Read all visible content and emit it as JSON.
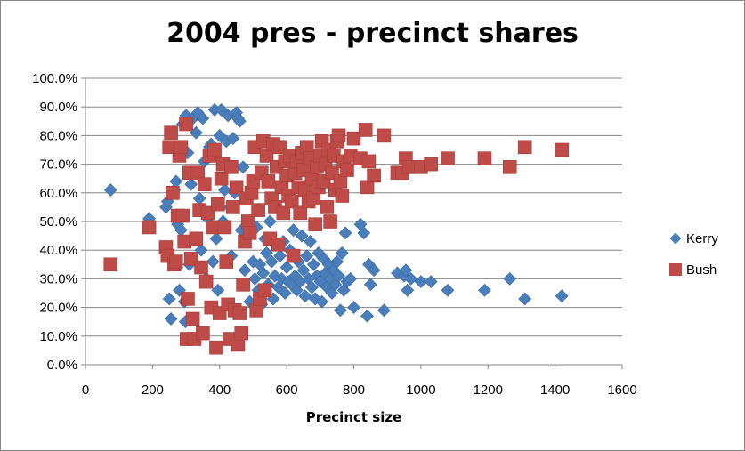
{
  "chart_data": {
    "type": "scatter",
    "title": "2004 pres - precinct shares",
    "xlabel": "Precinct size",
    "ylabel": "",
    "xlim": [
      0,
      1600
    ],
    "ylim": [
      0,
      1
    ],
    "x_ticks": [
      0,
      200,
      400,
      600,
      800,
      1000,
      1200,
      1400,
      1600
    ],
    "x_tick_labels": [
      "0",
      "200",
      "400",
      "600",
      "800",
      "1000",
      "1200",
      "1400",
      "1600"
    ],
    "y_ticks": [
      0,
      0.1,
      0.2,
      0.3,
      0.4,
      0.5,
      0.6,
      0.7,
      0.8,
      0.9,
      1.0
    ],
    "y_tick_labels": [
      "0.0%",
      "10.0%",
      "20.0%",
      "30.0%",
      "40.0%",
      "50.0%",
      "60.0%",
      "70.0%",
      "80.0%",
      "90.0%",
      "100.0%"
    ],
    "grid": "horizontal",
    "legend_position": "right",
    "series": [
      {
        "name": "Kerry",
        "marker": "diamond",
        "color": "#4a7ebb",
        "points": [
          [
            75,
            0.61
          ],
          [
            190,
            0.51
          ],
          [
            240,
            0.55
          ],
          [
            245,
            0.57
          ],
          [
            250,
            0.23
          ],
          [
            255,
            0.16
          ],
          [
            265,
            0.61
          ],
          [
            270,
            0.64
          ],
          [
            275,
            0.49
          ],
          [
            280,
            0.26
          ],
          [
            285,
            0.47
          ],
          [
            290,
            0.84
          ],
          [
            295,
            0.22
          ],
          [
            298,
            0.15
          ],
          [
            300,
            0.87
          ],
          [
            305,
            0.74
          ],
          [
            310,
            0.35
          ],
          [
            315,
            0.63
          ],
          [
            320,
            0.86
          ],
          [
            330,
            0.81
          ],
          [
            335,
            0.88
          ],
          [
            340,
            0.58
          ],
          [
            345,
            0.4
          ],
          [
            350,
            0.86
          ],
          [
            355,
            0.71
          ],
          [
            360,
            0.3
          ],
          [
            365,
            0.51
          ],
          [
            370,
            0.76
          ],
          [
            375,
            0.77
          ],
          [
            380,
            0.36
          ],
          [
            385,
            0.89
          ],
          [
            390,
            0.44
          ],
          [
            395,
            0.26
          ],
          [
            400,
            0.8
          ],
          [
            405,
            0.89
          ],
          [
            410,
            0.5
          ],
          [
            415,
            0.61
          ],
          [
            420,
            0.78
          ],
          [
            425,
            0.87
          ],
          [
            430,
            0.55
          ],
          [
            435,
            0.38
          ],
          [
            440,
            0.79
          ],
          [
            445,
            0.6
          ],
          [
            450,
            0.88
          ],
          [
            455,
            0.86
          ],
          [
            460,
            0.85
          ],
          [
            465,
            0.47
          ],
          [
            470,
            0.69
          ],
          [
            475,
            0.33
          ],
          [
            480,
            0.45
          ],
          [
            490,
            0.22
          ],
          [
            495,
            0.47
          ],
          [
            500,
            0.36
          ],
          [
            505,
            0.3
          ],
          [
            510,
            0.48
          ],
          [
            515,
            0.26
          ],
          [
            520,
            0.35
          ],
          [
            525,
            0.21
          ],
          [
            530,
            0.32
          ],
          [
            535,
            0.44
          ],
          [
            540,
            0.39
          ],
          [
            545,
            0.28
          ],
          [
            550,
            0.5
          ],
          [
            555,
            0.36
          ],
          [
            560,
            0.23
          ],
          [
            565,
            0.31
          ],
          [
            570,
            0.42
          ],
          [
            575,
            0.27
          ],
          [
            580,
            0.38
          ],
          [
            585,
            0.3
          ],
          [
            590,
            0.43
          ],
          [
            595,
            0.25
          ],
          [
            600,
            0.34
          ],
          [
            605,
            0.29
          ],
          [
            610,
            0.4
          ],
          [
            615,
            0.28
          ],
          [
            620,
            0.47
          ],
          [
            625,
            0.31
          ],
          [
            630,
            0.26
          ],
          [
            635,
            0.36
          ],
          [
            640,
            0.29
          ],
          [
            645,
            0.45
          ],
          [
            650,
            0.33
          ],
          [
            655,
            0.24
          ],
          [
            660,
            0.38
          ],
          [
            665,
            0.3
          ],
          [
            670,
            0.43
          ],
          [
            675,
            0.27
          ],
          [
            680,
            0.35
          ],
          [
            685,
            0.23
          ],
          [
            690,
            0.31
          ],
          [
            695,
            0.39
          ],
          [
            700,
            0.29
          ],
          [
            705,
            0.22
          ],
          [
            710,
            0.37
          ],
          [
            715,
            0.32
          ],
          [
            720,
            0.27
          ],
          [
            725,
            0.35
          ],
          [
            730,
            0.3
          ],
          [
            735,
            0.25
          ],
          [
            740,
            0.33
          ],
          [
            745,
            0.28
          ],
          [
            750,
            0.36
          ],
          [
            755,
            0.31
          ],
          [
            760,
            0.19
          ],
          [
            765,
            0.39
          ],
          [
            770,
            0.26
          ],
          [
            775,
            0.46
          ],
          [
            780,
            0.29
          ],
          [
            790,
            0.3
          ],
          [
            800,
            0.2
          ],
          [
            820,
            0.49
          ],
          [
            830,
            0.46
          ],
          [
            840,
            0.17
          ],
          [
            845,
            0.35
          ],
          [
            850,
            0.28
          ],
          [
            860,
            0.33
          ],
          [
            890,
            0.19
          ],
          [
            930,
            0.32
          ],
          [
            950,
            0.31
          ],
          [
            955,
            0.33
          ],
          [
            960,
            0.26
          ],
          [
            970,
            0.3
          ],
          [
            1000,
            0.29
          ],
          [
            1030,
            0.29
          ],
          [
            1080,
            0.26
          ],
          [
            1190,
            0.26
          ],
          [
            1265,
            0.3
          ],
          [
            1310,
            0.23
          ],
          [
            1420,
            0.24
          ]
        ]
      },
      {
        "name": "Bush",
        "marker": "square",
        "color": "#be4b48",
        "points": [
          [
            75,
            0.35
          ],
          [
            190,
            0.48
          ],
          [
            240,
            0.41
          ],
          [
            245,
            0.38
          ],
          [
            250,
            0.76
          ],
          [
            255,
            0.81
          ],
          [
            260,
            0.6
          ],
          [
            265,
            0.35
          ],
          [
            270,
            0.36
          ],
          [
            275,
            0.52
          ],
          [
            280,
            0.73
          ],
          [
            285,
            0.76
          ],
          [
            290,
            0.52
          ],
          [
            295,
            0.43
          ],
          [
            300,
            0.84
          ],
          [
            302,
            0.09
          ],
          [
            305,
            0.23
          ],
          [
            310,
            0.67
          ],
          [
            315,
            0.37
          ],
          [
            320,
            0.16
          ],
          [
            325,
            0.09
          ],
          [
            330,
            0.44
          ],
          [
            335,
            0.67
          ],
          [
            340,
            0.54
          ],
          [
            345,
            0.34
          ],
          [
            350,
            0.11
          ],
          [
            355,
            0.63
          ],
          [
            360,
            0.29
          ],
          [
            365,
            0.53
          ],
          [
            370,
            0.73
          ],
          [
            375,
            0.2
          ],
          [
            380,
            0.48
          ],
          [
            385,
            0.75
          ],
          [
            390,
            0.06
          ],
          [
            395,
            0.56
          ],
          [
            400,
            0.18
          ],
          [
            405,
            0.65
          ],
          [
            410,
            0.7
          ],
          [
            415,
            0.48
          ],
          [
            420,
            0.36
          ],
          [
            425,
            0.21
          ],
          [
            430,
            0.09
          ],
          [
            435,
            0.69
          ],
          [
            440,
            0.55
          ],
          [
            445,
            0.19
          ],
          [
            450,
            0.62
          ],
          [
            455,
            0.07
          ],
          [
            460,
            0.18
          ],
          [
            465,
            0.11
          ],
          [
            470,
            0.28
          ],
          [
            475,
            0.43
          ],
          [
            480,
            0.58
          ],
          [
            485,
            0.5
          ],
          [
            490,
            0.46
          ],
          [
            495,
            0.6
          ],
          [
            500,
            0.64
          ],
          [
            505,
            0.76
          ],
          [
            510,
            0.19
          ],
          [
            515,
            0.54
          ],
          [
            520,
            0.23
          ],
          [
            525,
            0.67
          ],
          [
            530,
            0.78
          ],
          [
            535,
            0.26
          ],
          [
            540,
            0.73
          ],
          [
            545,
            0.64
          ],
          [
            550,
            0.44
          ],
          [
            555,
            0.58
          ],
          [
            560,
            0.77
          ],
          [
            565,
            0.55
          ],
          [
            570,
            0.69
          ],
          [
            575,
            0.42
          ],
          [
            580,
            0.76
          ],
          [
            585,
            0.62
          ],
          [
            590,
            0.53
          ],
          [
            595,
            0.71
          ],
          [
            600,
            0.66
          ],
          [
            605,
            0.59
          ],
          [
            610,
            0.73
          ],
          [
            615,
            0.57
          ],
          [
            620,
            0.38
          ],
          [
            625,
            0.67
          ],
          [
            630,
            0.71
          ],
          [
            635,
            0.62
          ],
          [
            640,
            0.53
          ],
          [
            645,
            0.74
          ],
          [
            650,
            0.68
          ],
          [
            655,
            0.61
          ],
          [
            660,
            0.76
          ],
          [
            665,
            0.57
          ],
          [
            670,
            0.72
          ],
          [
            675,
            0.65
          ],
          [
            680,
            0.58
          ],
          [
            685,
            0.49
          ],
          [
            690,
            0.69
          ],
          [
            695,
            0.62
          ],
          [
            700,
            0.73
          ],
          [
            705,
            0.78
          ],
          [
            710,
            0.64
          ],
          [
            715,
            0.7
          ],
          [
            720,
            0.55
          ],
          [
            725,
            0.75
          ],
          [
            730,
            0.5
          ],
          [
            735,
            0.67
          ],
          [
            740,
            0.73
          ],
          [
            745,
            0.61
          ],
          [
            750,
            0.78
          ],
          [
            755,
            0.8
          ],
          [
            760,
            0.64
          ],
          [
            765,
            0.59
          ],
          [
            770,
            0.71
          ],
          [
            780,
            0.68
          ],
          [
            790,
            0.73
          ],
          [
            800,
            0.79
          ],
          [
            820,
            0.72
          ],
          [
            835,
            0.82
          ],
          [
            840,
            0.62
          ],
          [
            845,
            0.71
          ],
          [
            860,
            0.66
          ],
          [
            890,
            0.8
          ],
          [
            930,
            0.67
          ],
          [
            945,
            0.67
          ],
          [
            955,
            0.72
          ],
          [
            965,
            0.69
          ],
          [
            1000,
            0.69
          ],
          [
            1030,
            0.7
          ],
          [
            1080,
            0.72
          ],
          [
            1190,
            0.72
          ],
          [
            1265,
            0.69
          ],
          [
            1310,
            0.76
          ],
          [
            1420,
            0.75
          ]
        ]
      }
    ]
  }
}
